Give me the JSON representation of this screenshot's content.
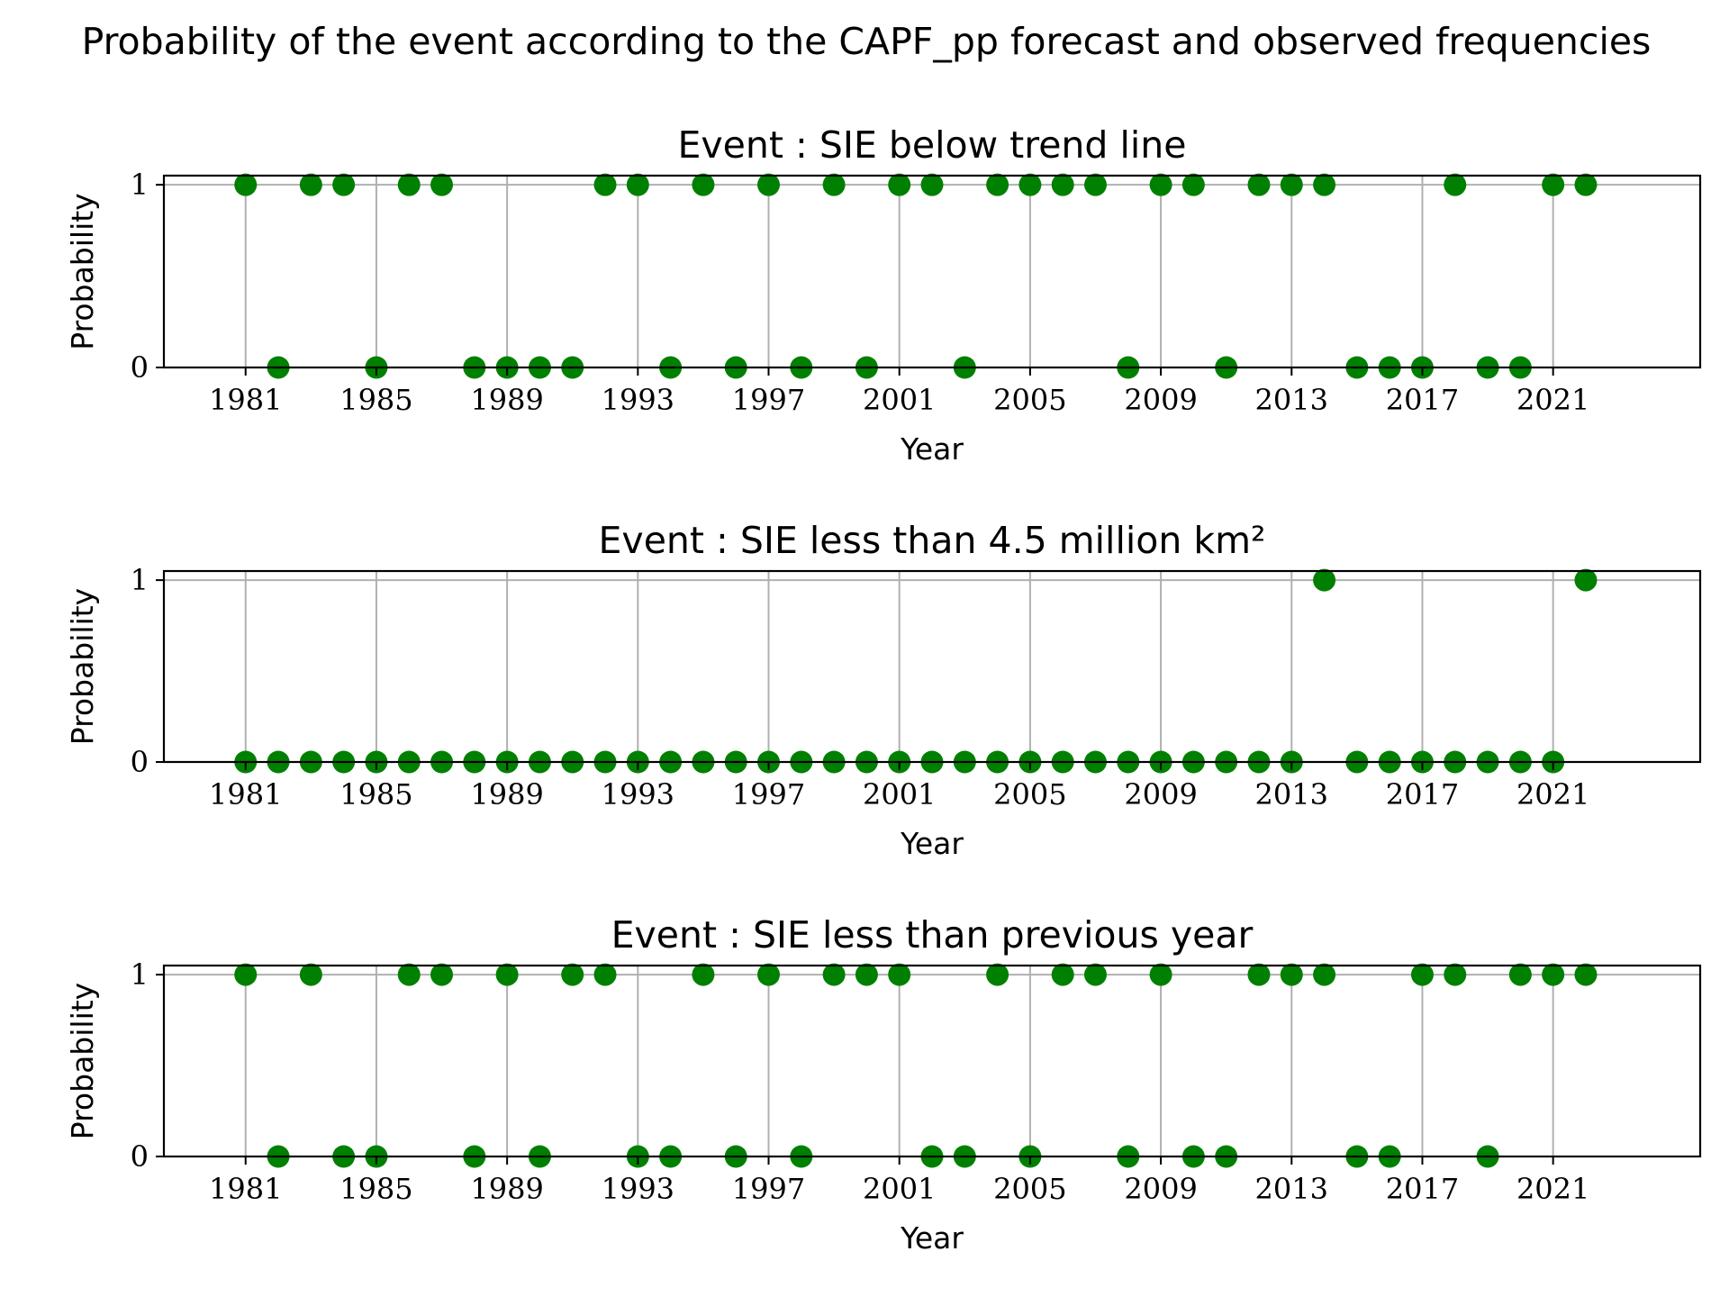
{
  "figure": {
    "suptitle": "Probability of the event according to the CAPF_pp forecast and observed frequencies",
    "point_color": "#008000",
    "grid_color": "#b0b0b0"
  },
  "chart_data": [
    {
      "type": "scatter",
      "title": "Event : SIE below trend line",
      "xlabel": "Year",
      "ylabel": "Probability",
      "xlim": [
        1978.5,
        2025.5
      ],
      "ylim": [
        0,
        1.05
      ],
      "xticks": [
        1981,
        1985,
        1989,
        1993,
        1997,
        2001,
        2005,
        2009,
        2013,
        2017,
        2021
      ],
      "yticks": [
        0,
        1
      ],
      "grid": true,
      "x": [
        1981,
        1982,
        1983,
        1984,
        1985,
        1986,
        1987,
        1988,
        1989,
        1990,
        1991,
        1992,
        1993,
        1994,
        1995,
        1996,
        1997,
        1998,
        1999,
        2000,
        2001,
        2002,
        2003,
        2004,
        2005,
        2006,
        2007,
        2008,
        2009,
        2010,
        2011,
        2012,
        2013,
        2014,
        2015,
        2016,
        2017,
        2018,
        2019,
        2020,
        2021,
        2022
      ],
      "y": [
        1,
        0,
        1,
        1,
        0,
        1,
        1,
        0,
        0,
        0,
        0,
        1,
        1,
        0,
        1,
        0,
        1,
        0,
        1,
        0,
        1,
        1,
        0,
        1,
        1,
        1,
        1,
        0,
        1,
        1,
        0,
        1,
        1,
        1,
        0,
        0,
        0,
        1,
        0,
        0,
        1,
        1
      ]
    },
    {
      "type": "scatter",
      "title": "Event : SIE less than 4.5 million km²",
      "xlabel": "Year",
      "ylabel": "Probability",
      "xlim": [
        1978.5,
        2025.5
      ],
      "ylim": [
        0,
        1.05
      ],
      "xticks": [
        1981,
        1985,
        1989,
        1993,
        1997,
        2001,
        2005,
        2009,
        2013,
        2017,
        2021
      ],
      "yticks": [
        0,
        1
      ],
      "grid": true,
      "x": [
        1981,
        1982,
        1983,
        1984,
        1985,
        1986,
        1987,
        1988,
        1989,
        1990,
        1991,
        1992,
        1993,
        1994,
        1995,
        1996,
        1997,
        1998,
        1999,
        2000,
        2001,
        2002,
        2003,
        2004,
        2005,
        2006,
        2007,
        2008,
        2009,
        2010,
        2011,
        2012,
        2013,
        2014,
        2015,
        2016,
        2017,
        2018,
        2019,
        2020,
        2021,
        2022
      ],
      "y": [
        0,
        0,
        0,
        0,
        0,
        0,
        0,
        0,
        0,
        0,
        0,
        0,
        0,
        0,
        0,
        0,
        0,
        0,
        0,
        0,
        0,
        0,
        0,
        0,
        0,
        0,
        0,
        0,
        0,
        0,
        0,
        0,
        0,
        1,
        0,
        0,
        0,
        0,
        0,
        0,
        0,
        1
      ]
    },
    {
      "type": "scatter",
      "title": "Event : SIE less than previous year",
      "xlabel": "Year",
      "ylabel": "Probability",
      "xlim": [
        1978.5,
        2025.5
      ],
      "ylim": [
        0,
        1.05
      ],
      "xticks": [
        1981,
        1985,
        1989,
        1993,
        1997,
        2001,
        2005,
        2009,
        2013,
        2017,
        2021
      ],
      "yticks": [
        0,
        1
      ],
      "grid": true,
      "x": [
        1981,
        1982,
        1983,
        1984,
        1985,
        1986,
        1987,
        1988,
        1989,
        1990,
        1991,
        1992,
        1993,
        1994,
        1995,
        1996,
        1997,
        1998,
        1999,
        2000,
        2001,
        2002,
        2003,
        2004,
        2005,
        2006,
        2007,
        2008,
        2009,
        2010,
        2011,
        2012,
        2013,
        2014,
        2015,
        2016,
        2017,
        2018,
        2019,
        2020,
        2021,
        2022
      ],
      "y": [
        1,
        0,
        1,
        0,
        0,
        1,
        1,
        0,
        1,
        0,
        1,
        1,
        0,
        0,
        1,
        0,
        1,
        0,
        1,
        1,
        1,
        0,
        0,
        1,
        0,
        1,
        1,
        0,
        1,
        0,
        0,
        1,
        1,
        1,
        0,
        0,
        1,
        1,
        0,
        1,
        1,
        1
      ]
    }
  ]
}
